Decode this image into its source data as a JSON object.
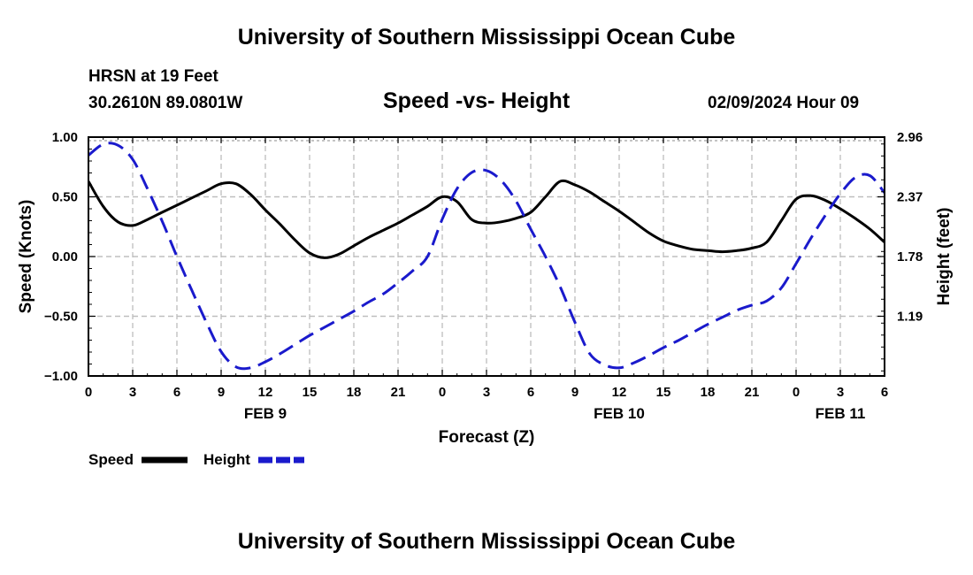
{
  "header": {
    "title": "University of Southern Mississippi Ocean Cube",
    "station": "HRSN at 19 Feet",
    "coordinates": "30.2610N  89.0801W",
    "subtitle": "Speed -vs- Height",
    "datetime": "02/09/2024 Hour 09"
  },
  "footer": {
    "title": "University of Southern Mississippi Ocean Cube"
  },
  "chart_data": {
    "type": "line",
    "title": "Speed -vs- Height",
    "xlabel": "Forecast (Z)",
    "ylabel": "Speed (Knots)",
    "y2label": "Height (feet)",
    "x_range": [
      0,
      54
    ],
    "ylim": [
      -1.0,
      1.0
    ],
    "y2lim": [
      0.6,
      2.96
    ],
    "y_ticks": [
      "1.00",
      "0.50",
      "0.00",
      "−0.50",
      "−1.00"
    ],
    "y_tick_values": [
      1.0,
      0.5,
      0.0,
      -0.5,
      -1.0
    ],
    "y2_ticks": [
      "2.96",
      "2.37",
      "1.78",
      "1.19"
    ],
    "y2_tick_values": [
      2.96,
      2.37,
      1.78,
      1.19
    ],
    "x_tick_labels": [
      "0",
      "3",
      "6",
      "9",
      "12",
      "15",
      "18",
      "21",
      "0",
      "3",
      "6",
      "9",
      "12",
      "15",
      "18",
      "21",
      "0",
      "3",
      "6"
    ],
    "day_labels": [
      {
        "label": "FEB 9",
        "x": 12
      },
      {
        "label": "FEB 10",
        "x": 36
      },
      {
        "label": "FEB 11",
        "x": 51
      }
    ],
    "grid": true,
    "colors": {
      "speed": "#000000",
      "height": "#1a1acc",
      "grid": "#bdbdbd"
    },
    "series": [
      {
        "name": "Speed",
        "axis": "left",
        "style": "solid",
        "x": [
          0,
          1,
          2,
          3,
          4,
          5,
          6,
          7,
          8,
          9,
          10,
          11,
          12,
          13,
          14,
          15,
          16,
          17,
          18,
          19,
          20,
          21,
          22,
          23,
          24,
          25,
          26,
          27,
          28,
          29,
          30,
          31,
          32,
          33,
          34,
          35,
          36,
          37,
          38,
          39,
          40,
          41,
          42,
          43,
          44,
          45,
          46,
          47,
          48,
          49,
          50,
          51,
          52,
          53,
          54
        ],
        "values": [
          0.63,
          0.42,
          0.29,
          0.26,
          0.31,
          0.37,
          0.43,
          0.49,
          0.55,
          0.61,
          0.61,
          0.52,
          0.39,
          0.27,
          0.14,
          0.03,
          -0.01,
          0.02,
          0.09,
          0.16,
          0.22,
          0.28,
          0.35,
          0.42,
          0.5,
          0.46,
          0.31,
          0.28,
          0.29,
          0.32,
          0.37,
          0.5,
          0.63,
          0.6,
          0.54,
          0.46,
          0.38,
          0.29,
          0.2,
          0.13,
          0.09,
          0.06,
          0.05,
          0.04,
          0.05,
          0.07,
          0.12,
          0.3,
          0.48,
          0.51,
          0.47,
          0.4,
          0.32,
          0.23,
          0.12
        ]
      },
      {
        "name": "Height",
        "axis": "right",
        "style": "dashed",
        "x": [
          0,
          1,
          2,
          3,
          4,
          5,
          6,
          7,
          8,
          9,
          10,
          11,
          12,
          13,
          14,
          15,
          16,
          17,
          18,
          19,
          20,
          21,
          22,
          23,
          24,
          25,
          26,
          27,
          28,
          29,
          30,
          31,
          32,
          33,
          34,
          35,
          36,
          37,
          38,
          39,
          40,
          41,
          42,
          43,
          44,
          45,
          46,
          47,
          48,
          49,
          50,
          51,
          52,
          53,
          54
        ],
        "values": [
          2.78,
          2.89,
          2.88,
          2.74,
          2.45,
          2.13,
          1.78,
          1.45,
          1.13,
          0.84,
          0.69,
          0.68,
          0.74,
          0.82,
          0.91,
          1.0,
          1.08,
          1.16,
          1.24,
          1.33,
          1.41,
          1.52,
          1.64,
          1.78,
          2.15,
          2.45,
          2.61,
          2.63,
          2.53,
          2.33,
          2.05,
          1.78,
          1.48,
          1.13,
          0.82,
          0.71,
          0.68,
          0.73,
          0.8,
          0.88,
          0.95,
          1.03,
          1.11,
          1.18,
          1.25,
          1.3,
          1.34,
          1.47,
          1.71,
          1.96,
          2.19,
          2.4,
          2.56,
          2.58,
          2.41
        ]
      }
    ],
    "legend": [
      {
        "label": "Speed",
        "series": "Speed"
      },
      {
        "label": "Height",
        "series": "Height"
      }
    ]
  }
}
